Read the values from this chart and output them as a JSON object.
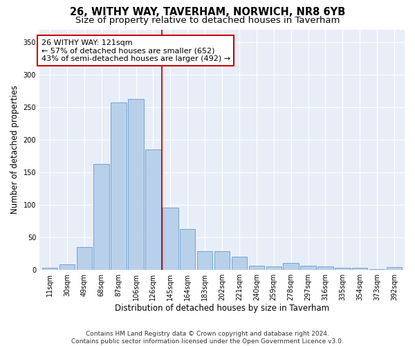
{
  "title": "26, WITHY WAY, TAVERHAM, NORWICH, NR8 6YB",
  "subtitle": "Size of property relative to detached houses in Taverham",
  "xlabel": "Distribution of detached houses by size in Taverham",
  "ylabel": "Number of detached properties",
  "bar_labels": [
    "11sqm",
    "30sqm",
    "49sqm",
    "68sqm",
    "87sqm",
    "106sqm",
    "126sqm",
    "145sqm",
    "164sqm",
    "183sqm",
    "202sqm",
    "221sqm",
    "240sqm",
    "259sqm",
    "278sqm",
    "297sqm",
    "316sqm",
    "335sqm",
    "354sqm",
    "373sqm",
    "392sqm"
  ],
  "bar_heights": [
    3,
    8,
    35,
    163,
    258,
    263,
    185,
    96,
    63,
    28,
    28,
    20,
    6,
    5,
    10,
    6,
    5,
    3,
    3,
    1,
    4
  ],
  "bar_color": "#b8d0ea",
  "bar_edge_color": "#6699cc",
  "annotation_text": "26 WITHY WAY: 121sqm\n← 57% of detached houses are smaller (652)\n43% of semi-detached houses are larger (492) →",
  "vline_x": 6.5,
  "vline_color": "#cc0000",
  "annotation_box_color": "#ffffff",
  "annotation_box_edge": "#cc0000",
  "footer": "Contains HM Land Registry data © Crown copyright and database right 2024.\nContains public sector information licensed under the Open Government Licence v3.0.",
  "ylim": [
    0,
    370
  ],
  "plot_bg_color": "#e8eef8",
  "title_fontsize": 10.5,
  "subtitle_fontsize": 9.5,
  "axis_label_fontsize": 8.5,
  "tick_fontsize": 7,
  "footer_fontsize": 6.5,
  "annotation_fontsize": 8
}
